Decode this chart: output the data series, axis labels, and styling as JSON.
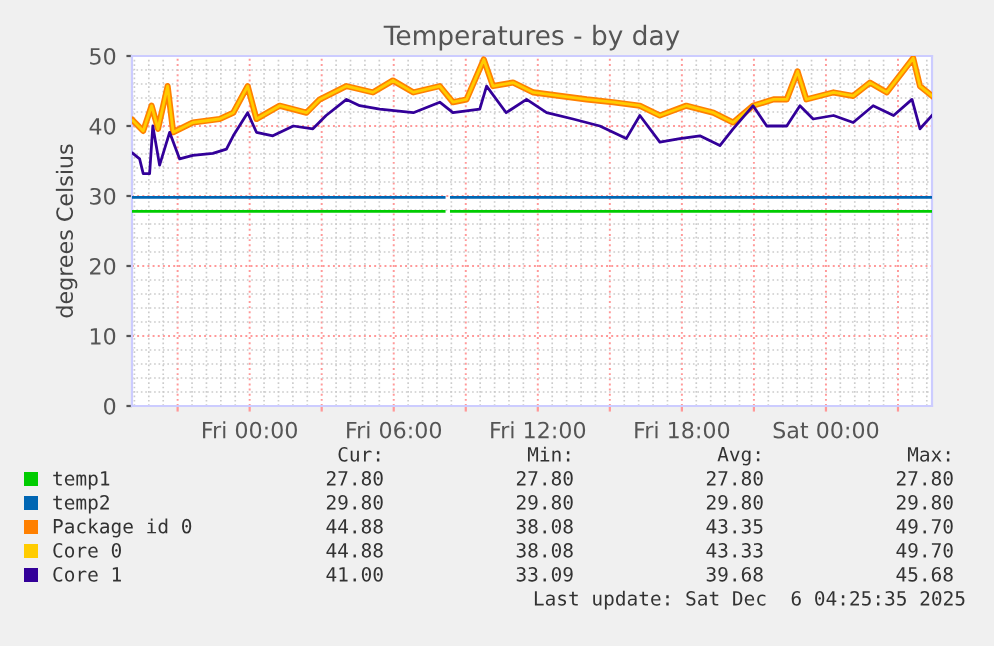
{
  "chart_data": {
    "type": "line",
    "title": "Temperatures - by day",
    "ylabel": "degrees Celsius",
    "xlim": [
      "2025-12-04T19:06",
      "2025-12-06T04:25"
    ],
    "ylim": [
      0,
      50
    ],
    "yticks": [
      0,
      10,
      20,
      30,
      40,
      50
    ],
    "xticks": [
      {
        "value": "2025-12-04T21:00",
        "label": null
      },
      {
        "value": "2025-12-05T00:00",
        "label": "Fri 00:00"
      },
      {
        "value": "2025-12-05T03:00",
        "label": null
      },
      {
        "value": "2025-12-05T06:00",
        "label": "Fri 06:00"
      },
      {
        "value": "2025-12-05T09:00",
        "label": null
      },
      {
        "value": "2025-12-05T12:00",
        "label": "Fri 12:00"
      },
      {
        "value": "2025-12-05T15:00",
        "label": null
      },
      {
        "value": "2025-12-05T18:00",
        "label": "Fri 18:00"
      },
      {
        "value": "2025-12-05T21:00",
        "label": null
      },
      {
        "value": "2025-12-06T00:00",
        "label": "Sat 00:00"
      },
      {
        "value": "2025-12-06T03:00",
        "label": null
      }
    ],
    "grid": true,
    "legend": "bottom",
    "marker": "none",
    "line_style": "solid",
    "series": [
      {
        "name": "temp1",
        "color": "#00cc00",
        "x": [
          "2025-12-04T19:06",
          "2025-12-05T08:06",
          "2025-12-05T08:15",
          "2025-12-05T08:24",
          "2025-12-06T04:25"
        ],
        "values": [
          27.8,
          27.8,
          null,
          27.8,
          27.8
        ]
      },
      {
        "name": "temp2",
        "color": "#0066b3",
        "x": [
          "2025-12-04T19:06",
          "2025-12-05T08:06",
          "2025-12-05T08:15",
          "2025-12-05T08:24",
          "2025-12-06T04:25"
        ],
        "values": [
          29.8,
          29.8,
          null,
          29.8,
          29.8
        ]
      },
      {
        "name": "Package id 0",
        "color": "#ff8000",
        "x": [
          "2025-12-04T19:08",
          "2025-12-04T19:34",
          "2025-12-04T19:55",
          "2025-12-04T20:11",
          "2025-12-04T20:35",
          "2025-12-04T20:49",
          "2025-12-04T21:38",
          "2025-12-04T22:45",
          "2025-12-04T23:19",
          "2025-12-04T23:55",
          "2025-12-05T00:17",
          "2025-12-05T01:15",
          "2025-12-05T02:22",
          "2025-12-05T02:55",
          "2025-12-05T04:02",
          "2025-12-05T05:08",
          "2025-12-05T05:58",
          "2025-12-05T06:49",
          "2025-12-05T07:55",
          "2025-12-05T08:28",
          "2025-12-05T09:02",
          "2025-12-05T09:45",
          "2025-12-05T10:08",
          "2025-12-05T10:58",
          "2025-12-05T11:49",
          "2025-12-05T12:55",
          "2025-12-05T14:02",
          "2025-12-05T15:08",
          "2025-12-05T16:15",
          "2025-12-05T17:05",
          "2025-12-05T18:11",
          "2025-12-05T19:19",
          "2025-12-05T20:08",
          "2025-12-05T20:58",
          "2025-12-05T21:49",
          "2025-12-05T22:22",
          "2025-12-05T22:49",
          "2025-12-05T23:11",
          "2025-12-06T00:19",
          "2025-12-06T01:08",
          "2025-12-06T01:50",
          "2025-12-06T02:32",
          "2025-12-06T03:38",
          "2025-12-06T03:55",
          "2025-12-06T04:25"
        ],
        "values": [
          40.8,
          39.3,
          42.9,
          39.6,
          45.7,
          39.1,
          40.5,
          41,
          41.9,
          45.7,
          41,
          42.9,
          41.9,
          43.8,
          45.7,
          44.8,
          46.5,
          44.8,
          45.7,
          43.4,
          43.8,
          49.5,
          45.7,
          46.2,
          44.8,
          44.3,
          43.8,
          43.4,
          42.9,
          41.5,
          42.9,
          41.9,
          40.5,
          42.9,
          43.8,
          43.8,
          47.8,
          43.8,
          44.8,
          44.3,
          46.2,
          44.8,
          49.7,
          45.7,
          44.3
        ]
      },
      {
        "name": "Core 0",
        "color": "#ffcc00",
        "x": [
          "2025-12-04T19:08",
          "2025-12-04T19:34",
          "2025-12-04T19:55",
          "2025-12-04T20:11",
          "2025-12-04T20:35",
          "2025-12-04T20:49",
          "2025-12-04T21:38",
          "2025-12-04T22:45",
          "2025-12-04T23:19",
          "2025-12-04T23:55",
          "2025-12-05T00:17",
          "2025-12-05T01:15",
          "2025-12-05T02:22",
          "2025-12-05T02:55",
          "2025-12-05T04:02",
          "2025-12-05T05:08",
          "2025-12-05T05:58",
          "2025-12-05T06:49",
          "2025-12-05T07:55",
          "2025-12-05T08:28",
          "2025-12-05T09:02",
          "2025-12-05T09:45",
          "2025-12-05T10:08",
          "2025-12-05T10:58",
          "2025-12-05T11:49",
          "2025-12-05T12:55",
          "2025-12-05T14:02",
          "2025-12-05T15:08",
          "2025-12-05T16:15",
          "2025-12-05T17:05",
          "2025-12-05T18:11",
          "2025-12-05T19:19",
          "2025-12-05T20:08",
          "2025-12-05T20:58",
          "2025-12-05T21:49",
          "2025-12-05T22:22",
          "2025-12-05T22:49",
          "2025-12-05T23:11",
          "2025-12-06T00:19",
          "2025-12-06T01:08",
          "2025-12-06T01:50",
          "2025-12-06T02:32",
          "2025-12-06T03:38",
          "2025-12-06T03:55",
          "2025-12-06T04:25"
        ],
        "values": [
          40.8,
          39.3,
          42.9,
          39.6,
          45.7,
          39.1,
          40.5,
          41,
          41.9,
          45.7,
          41,
          42.9,
          41.9,
          43.8,
          45.7,
          44.8,
          46.5,
          44.8,
          45.7,
          43.4,
          43.8,
          49.5,
          45.7,
          46.2,
          44.8,
          44.3,
          43.8,
          43.4,
          42.9,
          41.5,
          42.9,
          41.9,
          40.5,
          42.9,
          43.8,
          43.8,
          47.8,
          43.8,
          44.8,
          44.3,
          46.2,
          44.8,
          49.7,
          45.7,
          44.3
        ]
      },
      {
        "name": "Core 1",
        "color": "#330099",
        "x": [
          "2025-12-04T19:08",
          "2025-12-04T19:25",
          "2025-12-04T19:34",
          "2025-12-04T19:50",
          "2025-12-04T19:58",
          "2025-12-04T20:15",
          "2025-12-04T20:40",
          "2025-12-04T21:05",
          "2025-12-04T21:38",
          "2025-12-04T22:28",
          "2025-12-04T23:02",
          "2025-12-04T23:19",
          "2025-12-04T23:55",
          "2025-12-05T00:17",
          "2025-12-05T00:58",
          "2025-12-05T01:49",
          "2025-12-05T02:38",
          "2025-12-05T03:11",
          "2025-12-05T04:02",
          "2025-12-05T04:35",
          "2025-12-05T05:25",
          "2025-12-05T06:49",
          "2025-12-05T07:55",
          "2025-12-05T08:28",
          "2025-12-05T09:35",
          "2025-12-05T09:52",
          "2025-12-05T10:41",
          "2025-12-05T11:32",
          "2025-12-05T12:22",
          "2025-12-05T13:28",
          "2025-12-05T14:35",
          "2025-12-05T15:41",
          "2025-12-05T16:15",
          "2025-12-05T17:05",
          "2025-12-05T17:55",
          "2025-12-05T18:45",
          "2025-12-05T19:35",
          "2025-12-05T20:08",
          "2025-12-05T20:58",
          "2025-12-05T21:32",
          "2025-12-05T22:22",
          "2025-12-05T22:55",
          "2025-12-05T23:28",
          "2025-12-06T00:19",
          "2025-12-06T01:08",
          "2025-12-06T01:58",
          "2025-12-06T02:49",
          "2025-12-06T03:35",
          "2025-12-06T03:55",
          "2025-12-06T04:25"
        ],
        "values": [
          36.1,
          35.3,
          33.2,
          33.2,
          40,
          34.4,
          39.1,
          35.3,
          35.8,
          36.1,
          36.7,
          38.6,
          41.9,
          39.1,
          38.6,
          40,
          39.6,
          41.5,
          43.8,
          42.9,
          42.4,
          41.9,
          43.4,
          41.9,
          42.4,
          45.7,
          41.9,
          43.8,
          41.9,
          41,
          40,
          38.2,
          41.5,
          37.7,
          38.2,
          38.6,
          37.2,
          39.6,
          42.9,
          40,
          40,
          42.9,
          41,
          41.5,
          40.5,
          42.9,
          41.5,
          43.8,
          39.6,
          41.5
        ]
      }
    ],
    "annotations": [
      "Cur:",
      "Min:",
      "Avg:",
      "Max:",
      "27.80",
      "27.80",
      "27.80",
      "27.80",
      "29.80",
      "29.80",
      "29.80",
      "29.80",
      "44.88",
      "38.08",
      "43.35",
      "49.70",
      "44.88",
      "38.08",
      "43.33",
      "49.70",
      "41.00",
      "33.09",
      "39.68",
      "45.68",
      "Last update: Sat Dec  6 04:25:35 2025"
    ]
  }
}
